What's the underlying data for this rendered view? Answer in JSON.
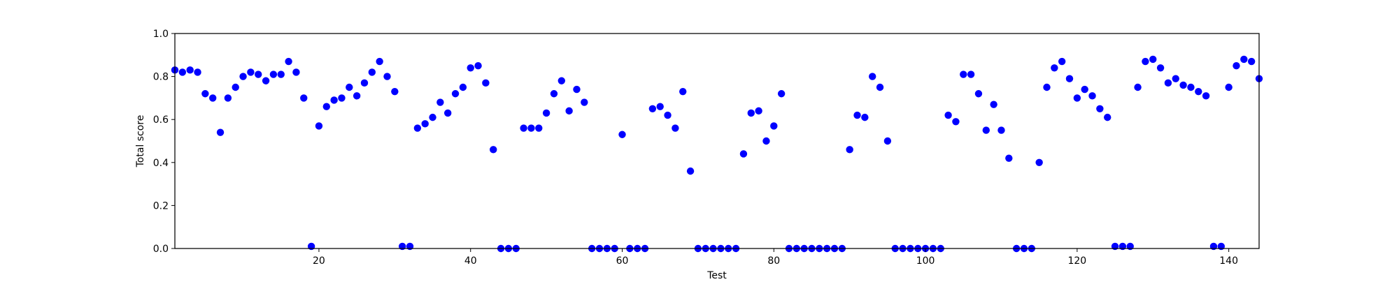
{
  "chart_data": {
    "type": "scatter",
    "title": "",
    "xlabel": "Test",
    "ylabel": "Total score",
    "xlim": [
      1,
      144
    ],
    "ylim": [
      0.0,
      1.0
    ],
    "xticks": [
      20,
      40,
      60,
      80,
      100,
      120,
      140
    ],
    "xtick_labels": [
      "20",
      "40",
      "60",
      "80",
      "100",
      "120",
      "140"
    ],
    "yticks": [
      0.0,
      0.2,
      0.4,
      0.6,
      0.8,
      1.0
    ],
    "ytick_labels": [
      "0.0",
      "0.2",
      "0.4",
      "0.6",
      "0.8",
      "1.0"
    ],
    "grid": false,
    "legend": "none",
    "marker_color": "#0000ff",
    "series": [
      {
        "x": [
          1,
          2,
          3,
          4,
          5,
          6,
          7,
          8,
          9,
          10,
          11,
          12,
          13,
          14,
          15,
          16,
          17,
          18,
          19,
          20,
          21,
          22,
          23,
          24,
          25,
          26,
          27,
          28,
          29,
          30,
          31,
          32,
          33,
          34,
          35,
          36,
          37,
          38,
          39,
          40,
          41,
          42,
          43,
          44,
          45,
          46,
          47,
          48,
          49,
          50,
          51,
          52,
          53,
          54,
          55,
          56,
          57,
          58,
          59,
          60,
          61,
          62,
          63,
          64,
          65,
          66,
          67,
          68,
          69,
          70,
          71,
          72,
          73,
          74,
          75,
          76,
          77,
          78,
          79,
          80,
          81,
          82,
          83,
          84,
          85,
          86,
          87,
          88,
          89,
          90,
          91,
          92,
          93,
          94,
          95,
          96,
          97,
          98,
          99,
          100,
          101,
          102,
          103,
          104,
          105,
          106,
          107,
          108,
          109,
          110,
          111,
          112,
          113,
          114,
          115,
          116,
          117,
          118,
          119,
          120,
          121,
          122,
          123,
          124,
          125,
          126,
          127,
          128,
          129,
          130,
          131,
          132,
          133,
          134,
          135,
          136,
          137,
          138,
          139,
          140,
          141,
          142,
          143,
          144
        ],
        "y": [
          0.83,
          0.82,
          0.83,
          0.82,
          0.72,
          0.7,
          0.54,
          0.7,
          0.75,
          0.8,
          0.82,
          0.81,
          0.78,
          0.81,
          0.81,
          0.87,
          0.82,
          0.7,
          0.01,
          0.57,
          0.66,
          0.69,
          0.7,
          0.75,
          0.71,
          0.77,
          0.82,
          0.87,
          0.8,
          0.73,
          0.01,
          0.01,
          0.56,
          0.58,
          0.61,
          0.68,
          0.63,
          0.72,
          0.75,
          0.84,
          0.85,
          0.77,
          0.46,
          0.0,
          0.0,
          0.0,
          0.56,
          0.56,
          0.56,
          0.63,
          0.72,
          0.78,
          0.64,
          0.74,
          0.68,
          0.0,
          0.0,
          0.0,
          0.0,
          0.53,
          0.0,
          0.0,
          0.0,
          0.65,
          0.66,
          0.62,
          0.56,
          0.73,
          0.36,
          0.0,
          0.0,
          0.0,
          0.0,
          0.0,
          0.0,
          0.44,
          0.63,
          0.64,
          0.5,
          0.57,
          0.72,
          0.0,
          0.0,
          0.0,
          0.0,
          0.0,
          0.0,
          0.0,
          0.0,
          0.46,
          0.62,
          0.61,
          0.8,
          0.75,
          0.5,
          0.0,
          0.0,
          0.0,
          0.0,
          0.0,
          0.0,
          0.0,
          0.62,
          0.59,
          0.81,
          0.81,
          0.72,
          0.55,
          0.67,
          0.55,
          0.42,
          0.0,
          0.0,
          0.0,
          0.4,
          0.75,
          0.84,
          0.87,
          0.79,
          0.7,
          0.74,
          0.71,
          0.65,
          0.61,
          0.01,
          0.01,
          0.01,
          0.75,
          0.87,
          0.88,
          0.84,
          0.77,
          0.79,
          0.76,
          0.75,
          0.73,
          0.71,
          0.01,
          0.01,
          0.75,
          0.85,
          0.88,
          0.87,
          0.79
        ]
      }
    ]
  }
}
